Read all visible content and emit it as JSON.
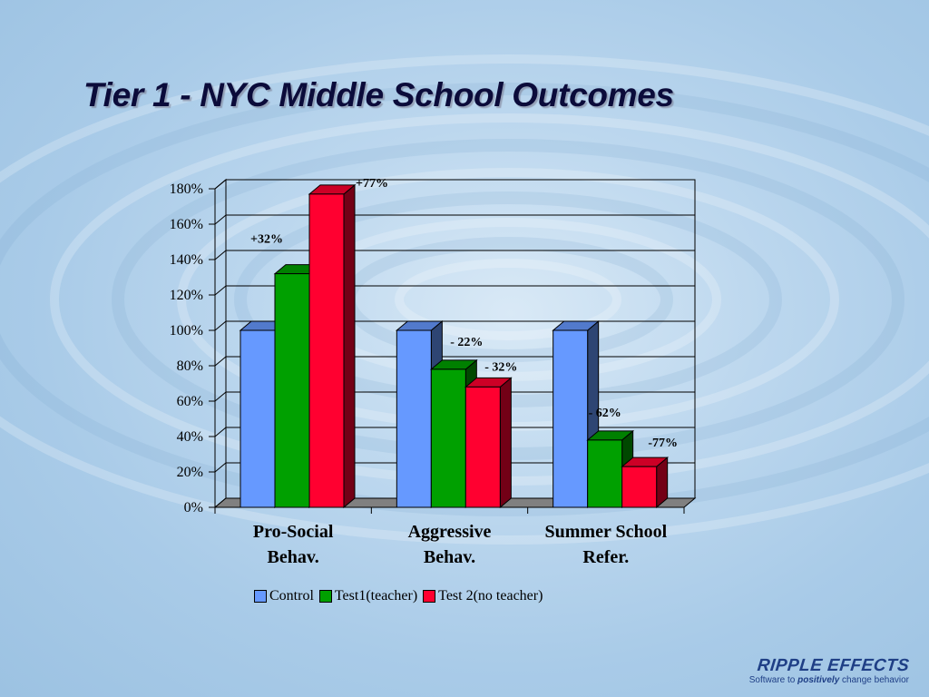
{
  "slide": {
    "title": "Tier 1 - NYC Middle School Outcomes"
  },
  "brand": {
    "name": "RIPPLE EFFECTS",
    "tagline_prefix": "Software to ",
    "tagline_emphasis": "positively",
    "tagline_suffix": " change behavior"
  },
  "chart_data": {
    "type": "bar",
    "style": "3d-clustered",
    "categories": [
      [
        "Pro-Social",
        "Behav."
      ],
      [
        "Aggressive",
        "Behav."
      ],
      [
        "Summer School",
        "Refer."
      ]
    ],
    "series": [
      {
        "name": "Control",
        "color": "#6699ff",
        "values": [
          100,
          100,
          100
        ]
      },
      {
        "name": "Test1(teacher)",
        "color": "#00a000",
        "values": [
          132,
          78,
          38
        ]
      },
      {
        "name": "Test 2(no teacher)",
        "color": "#ff0030",
        "values": [
          177,
          68,
          23
        ]
      }
    ],
    "annotations": [
      {
        "category": 0,
        "series": 1,
        "text": "+32%"
      },
      {
        "category": 0,
        "series": 2,
        "text": "+77%"
      },
      {
        "category": 1,
        "series": 1,
        "text": "- 22%"
      },
      {
        "category": 1,
        "series": 2,
        "text": "- 32%"
      },
      {
        "category": 2,
        "series": 1,
        "text": "- 62%"
      },
      {
        "category": 2,
        "series": 2,
        "text": "-77%"
      }
    ],
    "yticks": [
      "0%",
      "20%",
      "40%",
      "60%",
      "80%",
      "100%",
      "120%",
      "140%",
      "160%",
      "180%"
    ],
    "ylim": [
      0,
      180
    ],
    "grid": true,
    "legend_position": "bottom"
  }
}
